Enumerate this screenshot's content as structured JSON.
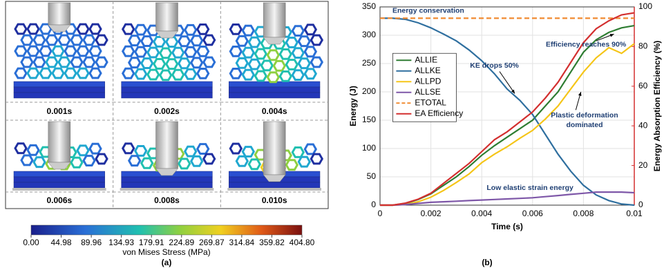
{
  "panel_a": {
    "time_labels": [
      "0.001s",
      "0.002s",
      "0.004s",
      "0.006s",
      "0.008s",
      "0.010s"
    ],
    "colorbar": {
      "lim": [
        0,
        404.8
      ],
      "ticks": [
        {
          "value": 0,
          "label": "0.00"
        },
        44.98,
        89.96,
        134.93,
        179.91,
        224.89,
        269.87,
        314.84,
        359.82,
        {
          "value": 404.8,
          "label": "404.80"
        }
      ],
      "label": "von Mises Stress (MPa)"
    },
    "caption": "(a)"
  },
  "chart_data": {
    "type": "line",
    "x": [
      0,
      0.0005,
      0.001,
      0.0015,
      0.002,
      0.0025,
      0.003,
      0.0035,
      0.004,
      0.0045,
      0.005,
      0.0055,
      0.006,
      0.0065,
      0.007,
      0.0075,
      0.008,
      0.0085,
      0.009,
      0.0095,
      0.01
    ],
    "xlabel": "Time (s)",
    "ylabel": "Energy (J)",
    "y2label": "Energy Absorption Efficiency (%)",
    "xlim": [
      0,
      0.01
    ],
    "xticks": [
      0,
      0.002,
      0.004,
      0.006,
      0.008,
      0.01
    ],
    "ylim": [
      0,
      350
    ],
    "yticks": [
      0,
      50,
      100,
      150,
      200,
      250,
      300,
      350
    ],
    "y2lim": [
      0,
      100
    ],
    "y2ticks": [
      0,
      20,
      40,
      60,
      80,
      100
    ],
    "grid": true,
    "legend": "left",
    "series": [
      {
        "name": "ALLIE",
        "color": "#2e7d32",
        "values": [
          0,
          0,
          3,
          10,
          20,
          35,
          50,
          68,
          88,
          105,
          120,
          135,
          150,
          175,
          200,
          235,
          270,
          292,
          305,
          313,
          317
        ]
      },
      {
        "name": "ALLKE",
        "color": "#2f6f9f",
        "values": [
          330,
          330,
          328,
          322,
          313,
          302,
          290,
          274,
          255,
          232,
          205,
          185,
          160,
          125,
          90,
          60,
          35,
          18,
          8,
          2,
          0
        ]
      },
      {
        "name": "ALLPD",
        "color": "#f5c518",
        "values": [
          0,
          0,
          1,
          6,
          14,
          26,
          40,
          55,
          75,
          90,
          103,
          118,
          132,
          152,
          175,
          205,
          235,
          260,
          278,
          268,
          285
        ]
      },
      {
        "name": "ALLSE",
        "color": "#7e57a8",
        "values": [
          0,
          0,
          1,
          3,
          5,
          6,
          7,
          8,
          9,
          10,
          11,
          12,
          13,
          15,
          17,
          19,
          21,
          23,
          23,
          23,
          22
        ]
      },
      {
        "name": "ETOTAL",
        "color": "#f08a30",
        "dashed": true,
        "values": [
          330,
          330,
          330,
          330,
          330,
          330,
          330,
          330,
          330,
          330,
          330,
          330,
          330,
          330,
          330,
          330,
          330,
          330,
          330,
          330,
          330
        ]
      },
      {
        "name": "EA Efficiency",
        "color": "#d32f2f",
        "axis": "y2",
        "values": [
          0,
          0,
          1,
          3,
          6,
          11,
          16,
          21,
          27,
          33,
          37,
          42,
          47,
          54,
          62,
          72,
          82,
          89,
          93,
          96,
          97
        ]
      }
    ],
    "annotations": [
      "Energy conservation",
      "Efficiency reaches 90%",
      "KE drops 50%",
      "Plastic deformation dominated",
      "Low elastic strain energy"
    ],
    "caption": "(b)"
  }
}
